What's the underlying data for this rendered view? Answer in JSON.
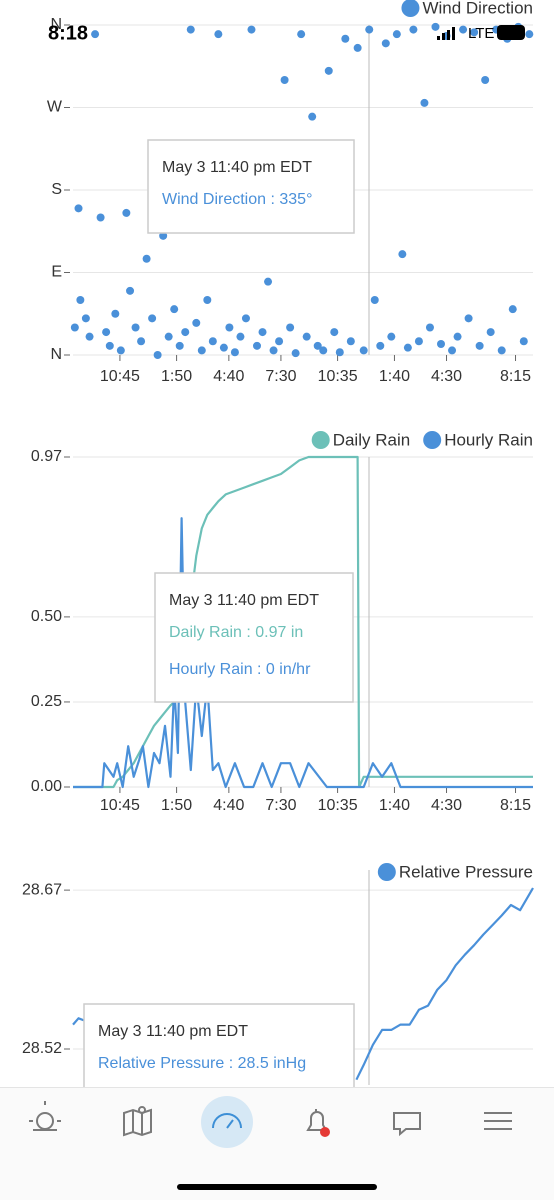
{
  "status_bar": {
    "time": "8:18",
    "network": "LTE"
  },
  "chart_data": [
    {
      "type": "scatter",
      "x": [
        8.3,
        8.5,
        8.6,
        8.9,
        9.1,
        9.4,
        9.7,
        10.0,
        10.2,
        10.5,
        10.8,
        11.1,
        11.3,
        11.6,
        11.9,
        12.2,
        12.5,
        12.8,
        13.1,
        13.4,
        13.7,
        14.0,
        14.3,
        14.6,
        14.9,
        15.2,
        15.5,
        15.8,
        16.1,
        16.4,
        16.7,
        17.0,
        17.3,
        17.6,
        17.9,
        18.2,
        18.5,
        18.8,
        19.1,
        19.4,
        19.7,
        20.0,
        20.3,
        20.6,
        20.9,
        21.2,
        21.5,
        21.8,
        22.1,
        22.4,
        22.7,
        23.0,
        23.3,
        23.67,
        24.0,
        24.3,
        24.6,
        24.9,
        25.2,
        25.5,
        25.8,
        26.1,
        26.4,
        26.7,
        27.0,
        27.3,
        27.6,
        27.9,
        28.2,
        28.5,
        28.8,
        29.1,
        29.4,
        29.7,
        30.0,
        30.3,
        30.6,
        30.9,
        31.2,
        31.5,
        31.8,
        32.1,
        32.4,
        32.7,
        33.0
      ],
      "series": [
        {
          "name": "Wind Direction",
          "color": "#4a90d9",
          "values": [
            30,
            160,
            60,
            40,
            20,
            350,
            150,
            25,
            10,
            45,
            5,
            155,
            70,
            30,
            15,
            105,
            40,
            0,
            130,
            20,
            50,
            10,
            25,
            355,
            35,
            5,
            60,
            15,
            350,
            8,
            30,
            3,
            20,
            40,
            355,
            10,
            25,
            80,
            5,
            15,
            300,
            30,
            2,
            350,
            20,
            260,
            10,
            5,
            310,
            25,
            3,
            345,
            15,
            335,
            5,
            355,
            60,
            10,
            340,
            20,
            350,
            110,
            8,
            355,
            15,
            275,
            30,
            358,
            12,
            348,
            5,
            20,
            355,
            40,
            352,
            10,
            300,
            25,
            355,
            5,
            345,
            50,
            358,
            15,
            350
          ]
        }
      ],
      "xlim": [
        8.2,
        33.2
      ],
      "xticks": [
        {
          "value": 10.75,
          "label": "10:45"
        },
        {
          "value": 13.83,
          "label": "1:50"
        },
        {
          "value": 16.67,
          "label": "4:40"
        },
        {
          "value": 19.5,
          "label": "7:30"
        },
        {
          "value": 22.58,
          "label": "10:35"
        },
        {
          "value": 25.67,
          "label": "1:40"
        },
        {
          "value": 28.5,
          "label": "4:30"
        },
        {
          "value": 32.25,
          "label": "8:15"
        }
      ],
      "ylim": [
        0,
        360
      ],
      "yticks": [
        {
          "value": 0,
          "label": "N"
        },
        {
          "value": 90,
          "label": "E"
        },
        {
          "value": 180,
          "label": "S"
        },
        {
          "value": 270,
          "label": "W"
        },
        {
          "value": 360,
          "label": "N"
        }
      ],
      "grid": true,
      "tooltip": {
        "title": "May 3 11:40 pm EDT",
        "lines": [
          "Wind Direction : 335°"
        ]
      }
    },
    {
      "type": "line",
      "x": [
        8.2,
        9.8,
        9.9,
        10.4,
        10.6,
        10.9,
        11.2,
        11.5,
        11.8,
        12.0,
        12.3,
        12.6,
        12.9,
        13.2,
        13.5,
        13.7,
        13.9,
        14.1,
        14.3,
        14.6,
        14.9,
        15.2,
        15.5,
        15.8,
        16.1,
        16.5,
        17.0,
        17.5,
        18.0,
        18.5,
        19.0,
        19.5,
        20.0,
        20.5,
        21.0,
        22.0,
        23.0,
        23.67,
        23.75,
        24.0,
        24.5,
        25.0,
        25.5,
        26.0,
        28.0,
        30.0,
        33.2
      ],
      "series": [
        {
          "name": "Daily Rain",
          "color": "#6cc0b8",
          "values": [
            0,
            0,
            0,
            0,
            0.02,
            0.03,
            0.05,
            0.07,
            0.1,
            0.12,
            0.15,
            0.18,
            0.2,
            0.22,
            0.24,
            0.25,
            0.27,
            0.33,
            0.42,
            0.55,
            0.68,
            0.76,
            0.8,
            0.82,
            0.84,
            0.86,
            0.87,
            0.88,
            0.89,
            0.9,
            0.91,
            0.92,
            0.94,
            0.96,
            0.97,
            0.97,
            0.97,
            0.97,
            0,
            0.03,
            0.03,
            0.03,
            0.03,
            0.03,
            0.03,
            0.03,
            0.03
          ]
        },
        {
          "name": "Hourly Rain",
          "color": "#4a90d9",
          "values": [
            0,
            0,
            0.07,
            0.03,
            0.07,
            0,
            0.12,
            0.03,
            0.08,
            0.12,
            0,
            0.1,
            0.07,
            0.18,
            0.03,
            0.3,
            0.1,
            0.79,
            0.25,
            0.05,
            0.3,
            0.15,
            0.3,
            0.05,
            0.07,
            0,
            0.07,
            0,
            0,
            0.07,
            0,
            0.07,
            0.07,
            0,
            0.07,
            0,
            0,
            0,
            0,
            0,
            0.07,
            0.03,
            0.07,
            0,
            0,
            0,
            0
          ]
        }
      ],
      "xlim": [
        8.2,
        33.2
      ],
      "xticks": [
        {
          "value": 10.75,
          "label": "10:45"
        },
        {
          "value": 13.83,
          "label": "1:50"
        },
        {
          "value": 16.67,
          "label": "4:40"
        },
        {
          "value": 19.5,
          "label": "7:30"
        },
        {
          "value": 22.58,
          "label": "10:35"
        },
        {
          "value": 25.67,
          "label": "1:40"
        },
        {
          "value": 28.5,
          "label": "4:30"
        },
        {
          "value": 32.25,
          "label": "8:15"
        }
      ],
      "ylim": [
        0,
        0.97
      ],
      "yticks": [
        {
          "value": 0,
          "label": "0.00"
        },
        0.25,
        {
          "value": 0.5,
          "label": "0.50"
        },
        0.97
      ],
      "grid": true,
      "tooltip": {
        "title": "May 3 11:40 pm EDT",
        "lines": [
          "Daily Rain : 0.97 in",
          "Hourly Rain : 0 in/hr"
        ]
      }
    },
    {
      "type": "line",
      "x": [
        8.2,
        8.5,
        8.8,
        16.0,
        23.6,
        24.0,
        24.5,
        25.0,
        25.5,
        26.0,
        26.5,
        27.0,
        27.5,
        28.0,
        28.5,
        29.0,
        29.5,
        30.0,
        30.5,
        31.0,
        31.5,
        32.0,
        32.5,
        33.2
      ],
      "series": [
        {
          "name": "Relative Pressure",
          "color": "#4a90d9",
          "values": [
            28.543,
            28.549,
            28.547,
            null,
            28.491,
            28.505,
            28.524,
            28.538,
            28.538,
            28.543,
            28.543,
            28.557,
            28.561,
            28.576,
            28.585,
            28.599,
            28.609,
            28.618,
            28.628,
            28.637,
            28.646,
            28.656,
            28.651,
            28.672
          ]
        }
      ],
      "xlim": [
        8.2,
        33.2
      ],
      "ylim": [
        28.486,
        28.689
      ],
      "yticks": [
        28.52,
        28.67
      ],
      "grid": true,
      "tooltip": {
        "title": "May 3 11:40 pm EDT",
        "lines": [
          "Relative Pressure : 28.5 inHg"
        ]
      }
    }
  ]
}
